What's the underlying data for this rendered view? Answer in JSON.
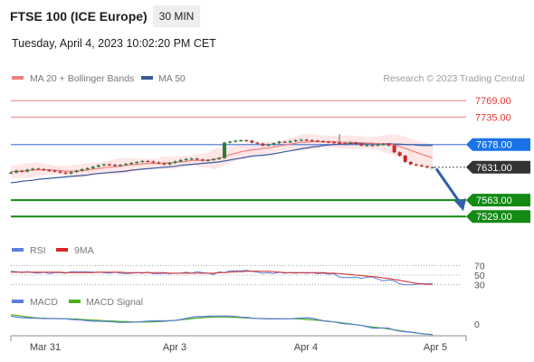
{
  "header": {
    "title": "FTSE 100 (ICE Europe)",
    "timeframe_button": "30 MIN",
    "datetime": "Tuesday, April 4, 2023 10:02:20 PM CET"
  },
  "legend": {
    "ma20": "MA 20 + Bollinger Bands",
    "ma50": "MA 50",
    "credit": "Research © 2023 Trading Central",
    "rsi": "RSI",
    "rsi_ma": "9MA",
    "macd": "MACD",
    "macd_signal": "MACD Signal"
  },
  "colors": {
    "resistance": "#f07b7b",
    "pivot": "#5b7fd9",
    "pivot_label": "#1a73e8",
    "support": "#138a13",
    "last_price": "#333333",
    "ma20": "#f08080",
    "ma50": "#3a5a9c",
    "band_fill": "#fde3e3",
    "candle_up": "#2f7d32",
    "candle_down": "#c62828",
    "rsi": "#5b7fd9",
    "rsi_ma": "#d62728",
    "macd": "#5b7fd9",
    "macd_signal": "#4caf1f",
    "arrow": "#2f5fa8"
  },
  "chart_data": [
    {
      "type": "candlestick",
      "x_ticks": [
        "Mar 31",
        "Apr 3",
        "Apr 4",
        "Apr 5"
      ],
      "ylim": [
        7505,
        7790
      ],
      "levels": [
        {
          "role": "resistance",
          "value": 7769.0,
          "label": "7769.00"
        },
        {
          "role": "resistance",
          "value": 7735.0,
          "label": "7735.00"
        },
        {
          "role": "pivot",
          "value": 7678.0,
          "label": "7678.00"
        },
        {
          "role": "last",
          "value": 7631.0,
          "label": "7631.00"
        },
        {
          "role": "support",
          "value": 7563.0,
          "label": "7563.00"
        },
        {
          "role": "support",
          "value": 7529.0,
          "label": "7529.00"
        }
      ],
      "series": [
        {
          "name": "Close",
          "values": [
            7620,
            7624,
            7622,
            7626,
            7628,
            7627,
            7625,
            7624,
            7622,
            7620,
            7618,
            7621,
            7624,
            7627,
            7629,
            7632,
            7635,
            7637,
            7636,
            7634,
            7636,
            7638,
            7640,
            7642,
            7644,
            7643,
            7641,
            7639,
            7637,
            7640,
            7643,
            7646,
            7648,
            7649,
            7647,
            7645,
            7646,
            7648,
            7650,
            7682,
            7684,
            7686,
            7687,
            7686,
            7682,
            7680,
            7676,
            7678,
            7681,
            7684,
            7683,
            7685,
            7687,
            7688,
            7687,
            7686,
            7685,
            7684,
            7683,
            7682,
            7681,
            7680,
            7682,
            7679,
            7676,
            7677,
            7676,
            7678,
            7679,
            7676,
            7662,
            7655,
            7642,
            7637,
            7635,
            7633,
            7631,
            7631
          ]
        },
        {
          "name": "MA 20",
          "values": [
            7622,
            7622,
            7623,
            7624,
            7625,
            7626,
            7626,
            7626,
            7625,
            7624,
            7623,
            7623,
            7623,
            7624,
            7625,
            7627,
            7628,
            7630,
            7631,
            7632,
            7633,
            7635,
            7636,
            7637,
            7638,
            7639,
            7639,
            7639,
            7640,
            7640,
            7641,
            7642,
            7643,
            7645,
            7645,
            7645,
            7646,
            7647,
            7650,
            7653,
            7657,
            7660,
            7663,
            7665,
            7667,
            7668,
            7670,
            7671,
            7673,
            7675,
            7677,
            7679,
            7681,
            7683,
            7683,
            7684,
            7684,
            7684,
            7684,
            7684,
            7683,
            7683,
            7683,
            7682,
            7682,
            7681,
            7681,
            7680,
            7680,
            7679,
            7677,
            7674,
            7670,
            7666,
            7662,
            7658,
            7654,
            7650
          ]
        },
        {
          "name": "MA 50",
          "values": [
            7599,
            7600,
            7602,
            7603,
            7604,
            7606,
            7607,
            7608,
            7609,
            7610,
            7611,
            7612,
            7613,
            7614,
            7615,
            7617,
            7618,
            7619,
            7620,
            7621,
            7622,
            7623,
            7625,
            7626,
            7627,
            7628,
            7629,
            7630,
            7631,
            7632,
            7633,
            7635,
            7636,
            7637,
            7638,
            7639,
            7640,
            7641,
            7642,
            7644,
            7646,
            7648,
            7650,
            7652,
            7654,
            7655,
            7656,
            7657,
            7659,
            7661,
            7663,
            7665,
            7667,
            7669,
            7671,
            7673,
            7674,
            7676,
            7677,
            7678,
            7679,
            7679,
            7680,
            7680,
            7680,
            7680,
            7680,
            7680,
            7680,
            7680,
            7679,
            7679,
            7678,
            7678,
            7677,
            7676,
            7676,
            7676
          ]
        },
        {
          "name": "RSI",
          "values": [
            58,
            57,
            55,
            57,
            55,
            54,
            56,
            53,
            55,
            55,
            54,
            57,
            57,
            57,
            57,
            56,
            56,
            55,
            54,
            56,
            54,
            53,
            54,
            55,
            54,
            56,
            53,
            53,
            54,
            53,
            54,
            54,
            56,
            54,
            57,
            55,
            54,
            51,
            57,
            55,
            59,
            59,
            59,
            60,
            58,
            56,
            54,
            55,
            53,
            56,
            54,
            55,
            54,
            55,
            54,
            55,
            53,
            54,
            52,
            53,
            46,
            45,
            45,
            46,
            43,
            46,
            46,
            42,
            38,
            40,
            38,
            32,
            30,
            30,
            31,
            32,
            32,
            32
          ]
        },
        {
          "name": "9MA",
          "values": [
            56,
            56,
            56,
            56,
            56,
            56,
            56,
            56,
            56,
            56,
            55,
            55,
            55,
            55,
            55,
            55,
            56,
            56,
            56,
            56,
            56,
            55,
            55,
            55,
            55,
            55,
            55,
            55,
            55,
            54,
            54,
            54,
            54,
            54,
            54,
            54,
            54,
            54,
            55,
            55,
            56,
            57,
            57,
            58,
            58,
            58,
            58,
            58,
            57,
            56,
            55,
            55,
            55,
            55,
            55,
            55,
            55,
            55,
            54,
            54,
            53,
            52,
            51,
            50,
            49,
            48,
            47,
            46,
            44,
            43,
            41,
            39,
            37,
            35,
            33,
            32,
            31,
            31
          ]
        },
        {
          "name": "MACD",
          "values": [
            -2.0,
            -3.3,
            -4.0,
            -4.5,
            -4.6,
            -4.9,
            -5.3,
            -5.3,
            -5.2,
            -5.3,
            -5.5,
            -6.4,
            -6.9,
            -7.3,
            -8.1,
            -8.7,
            -8.7,
            -9.0,
            -9.4,
            -9.8,
            -10.6,
            -10.3,
            -10.1,
            -10.0,
            -9.3,
            -8.6,
            -8.4,
            -8.2,
            -8.3,
            -8.0,
            -7.7,
            -6.6,
            -4.9,
            -3.5,
            -2.5,
            -2.6,
            -2.1,
            -1.9,
            -1.9,
            -1.8,
            -1.9,
            -2.5,
            -3.4,
            -3.6,
            -4.7,
            -5.1,
            -5.2,
            -5.7,
            -5.7,
            -5.4,
            -5.6,
            -5.5,
            -5.0,
            -4.6,
            -4.2,
            -4.8,
            -6.4,
            -8.3,
            -9.2,
            -9.7,
            -11.3,
            -12.3,
            -12.7,
            -13.5,
            -14.3,
            -16.1,
            -17.8,
            -18.1,
            -17.7,
            -18.1,
            -20.6,
            -22.1,
            -22.8,
            -23.4,
            -24.4,
            -25.5,
            -26.1,
            -26.6
          ]
        },
        {
          "name": "MACD Signal",
          "values": [
            0.0,
            -1.0,
            -2.0,
            -3.0,
            -3.8,
            -4.4,
            -4.8,
            -5.1,
            -5.3,
            -5.4,
            -5.5,
            -5.7,
            -6.0,
            -6.4,
            -6.9,
            -7.3,
            -7.7,
            -8.1,
            -8.4,
            -8.7,
            -9.1,
            -9.4,
            -9.6,
            -9.8,
            -9.9,
            -9.8,
            -9.6,
            -9.3,
            -8.9,
            -8.3,
            -7.7,
            -7.0,
            -6.2,
            -5.4,
            -4.7,
            -4.1,
            -3.6,
            -3.3,
            -3.2,
            -3.2,
            -3.4,
            -3.7,
            -4.1,
            -4.5,
            -4.8,
            -5.1,
            -5.3,
            -5.4,
            -5.5,
            -5.5,
            -5.5,
            -5.5,
            -5.6,
            -5.9,
            -6.4,
            -7.0,
            -7.6,
            -8.2,
            -8.9,
            -9.7,
            -10.5,
            -11.4,
            -12.4,
            -13.5,
            -14.6,
            -15.6,
            -16.5,
            -17.3,
            -18.2,
            -19.1,
            -20.2,
            -21.3,
            -22.4,
            -23.5,
            -24.5,
            -25.3,
            -26.0,
            -26.6
          ]
        }
      ]
    },
    {
      "type": "line",
      "title": "RSI",
      "ylim": [
        20,
        80
      ],
      "y_ticks": [
        "70",
        "50",
        "30"
      ]
    },
    {
      "type": "line",
      "title": "MACD",
      "y_ticks": [
        "0"
      ]
    }
  ]
}
